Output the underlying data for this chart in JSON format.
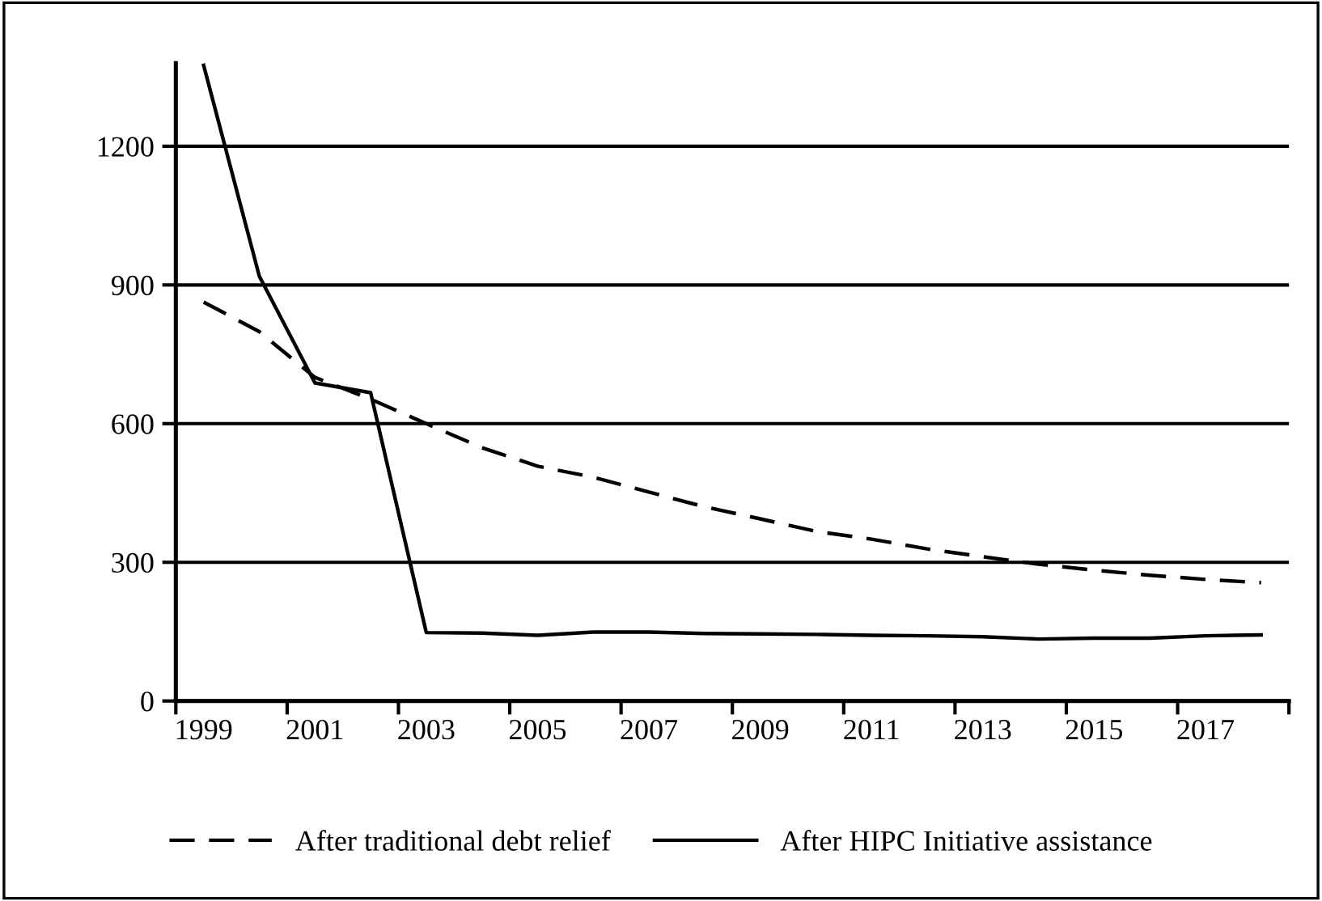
{
  "chart_data": {
    "type": "line",
    "categories": [
      "1999",
      null,
      "2001",
      null,
      "2003",
      null,
      "2005",
      null,
      "2007",
      null,
      "2009",
      null,
      "2011",
      null,
      "2013",
      null,
      "2015",
      null,
      "2017",
      null
    ],
    "series": [
      {
        "name": "After traditional debt relief",
        "color": "#000000",
        "line_style": "dashed",
        "values": [
          863,
          799,
          700,
          653,
          600,
          548,
          508,
          484,
          452,
          420,
          394,
          367,
          350,
          329,
          312,
          296,
          283,
          272,
          263,
          256
        ]
      },
      {
        "name": "After HIPC Initiative assistance",
        "color": "#000000",
        "line_style": "solid",
        "values": [
          1375,
          919,
          688,
          667,
          148,
          147,
          142,
          149,
          149,
          146,
          145,
          144,
          142,
          141,
          139,
          134,
          136,
          136,
          141,
          143
        ]
      }
    ],
    "ylim": [
      0,
      1380
    ],
    "yticks": [
      0,
      300,
      600,
      900,
      1200
    ],
    "grid": "y",
    "legend": "bottom",
    "marker": "none"
  }
}
